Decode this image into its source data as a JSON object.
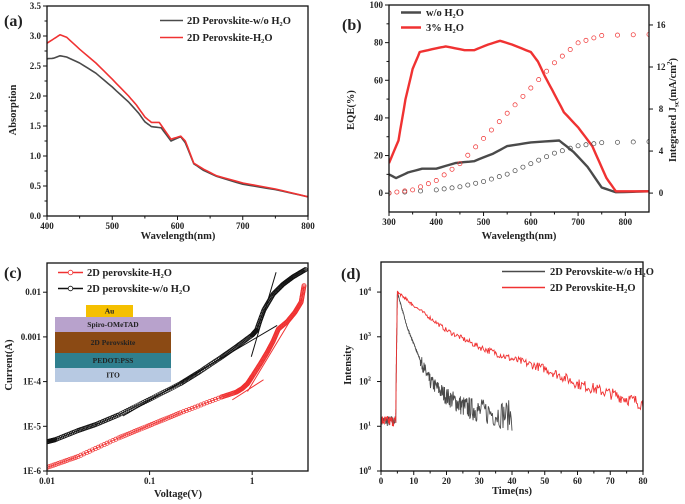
{
  "colors": {
    "black_series": "#4a4a4a",
    "red_series": "#f03232",
    "axis": "#111111"
  },
  "chart_data": [
    {
      "panel_label": "(a)",
      "type": "line",
      "xlabel": "Wavelength(nm)",
      "ylabel": "Absorption",
      "xlim": [
        400,
        800
      ],
      "ylim": [
        0,
        3.5
      ],
      "x_ticks": [
        {
          "v": 400,
          "label": "400"
        },
        {
          "v": 500,
          "label": "500"
        },
        {
          "v": 600,
          "label": "600"
        },
        {
          "v": 700,
          "label": "700"
        },
        {
          "v": 800,
          "label": "800"
        }
      ],
      "y_ticks": [
        {
          "v": 0,
          "label": "0.0"
        },
        {
          "v": 0.5,
          "label": "0.5"
        },
        {
          "v": 1,
          "label": "1.0"
        },
        {
          "v": 1.5,
          "label": "1.5"
        },
        {
          "v": 2,
          "label": "2.0"
        },
        {
          "v": 2.5,
          "label": "2.5"
        },
        {
          "v": 3,
          "label": "3.0"
        },
        {
          "v": 3.5,
          "label": "3.5"
        }
      ],
      "legend_position": "top-right",
      "series": [
        {
          "name": "2D Perovskite-w/o H₂O",
          "color": "#4a4a4a",
          "x": [
            400,
            410,
            420,
            430,
            450,
            475,
            500,
            525,
            540,
            550,
            560,
            575,
            590,
            600,
            605,
            612,
            625,
            640,
            660,
            700,
            750,
            800
          ],
          "y": [
            2.62,
            2.63,
            2.67,
            2.65,
            2.55,
            2.38,
            2.15,
            1.9,
            1.72,
            1.57,
            1.49,
            1.47,
            1.25,
            1.3,
            1.32,
            1.22,
            0.87,
            0.76,
            0.66,
            0.53,
            0.44,
            0.32
          ]
        },
        {
          "name": "2D Perovskite-H₂O",
          "color": "#f03232",
          "x": [
            400,
            410,
            420,
            430,
            450,
            475,
            500,
            525,
            537,
            550,
            560,
            572,
            590,
            605,
            612,
            625,
            640,
            660,
            700,
            750,
            800
          ],
          "y": [
            2.88,
            2.95,
            3.02,
            2.98,
            2.78,
            2.55,
            2.28,
            2.0,
            1.85,
            1.65,
            1.56,
            1.56,
            1.28,
            1.33,
            1.25,
            0.88,
            0.78,
            0.67,
            0.55,
            0.45,
            0.32
          ]
        }
      ]
    },
    {
      "panel_label": "(b)",
      "type": "line",
      "xlabel": "Wavelength(nm)",
      "ylabel": "EQE(%)",
      "y2label": {
        "main": "Integrated J",
        "sub": "sc",
        "unit": "(mA/cm",
        "sup": "2",
        "close": ")"
      },
      "xlim": [
        300,
        850
      ],
      "ylim": [
        -10,
        100
      ],
      "y2lim": [
        -1.8,
        17.9
      ],
      "x_ticks": [
        {
          "v": 300,
          "label": "300"
        },
        {
          "v": 400,
          "label": "400"
        },
        {
          "v": 500,
          "label": "500"
        },
        {
          "v": 600,
          "label": "600"
        },
        {
          "v": 700,
          "label": "700"
        },
        {
          "v": 800,
          "label": "800"
        }
      ],
      "y_ticks": [
        {
          "v": 0,
          "label": "0"
        },
        {
          "v": 20,
          "label": "20"
        },
        {
          "v": 40,
          "label": "40"
        },
        {
          "v": 60,
          "label": "60"
        },
        {
          "v": 80,
          "label": "80"
        },
        {
          "v": 100,
          "label": "100"
        }
      ],
      "y2_ticks": [
        {
          "v": 0,
          "label": "0"
        },
        {
          "v": 4,
          "label": "4"
        },
        {
          "v": 8,
          "label": "8"
        },
        {
          "v": 12,
          "label": "12"
        },
        {
          "v": 16,
          "label": "16"
        }
      ],
      "legend_position": "top-left",
      "series": [
        {
          "name": "w/o H₂O",
          "color": "#4a4a4a",
          "axis": "left",
          "x": [
            300,
            315,
            340,
            370,
            400,
            440,
            480,
            520,
            550,
            600,
            660,
            690,
            720,
            750,
            780,
            850
          ],
          "y": [
            10,
            8,
            11,
            13,
            13,
            16,
            17,
            21,
            25,
            27,
            28,
            22,
            14,
            3,
            0.5,
            1
          ]
        },
        {
          "name": "3% H₂O",
          "color": "#f03232",
          "axis": "left",
          "x": [
            300,
            320,
            335,
            350,
            365,
            400,
            420,
            460,
            480,
            510,
            535,
            560,
            600,
            615,
            630,
            645,
            670,
            700,
            730,
            760,
            780,
            850
          ],
          "y": [
            16,
            28,
            50,
            66,
            75,
            77,
            78,
            76,
            76,
            79,
            81,
            79,
            75,
            70,
            62,
            55,
            43,
            35,
            25,
            8,
            1,
            1
          ]
        },
        {
          "color": "#4a4a4a",
          "axis": "right",
          "marker": "open-circle",
          "x": [
            300,
            400,
            450,
            500,
            550,
            600,
            650,
            700,
            750,
            850
          ],
          "y": [
            0,
            0.3,
            0.6,
            1.1,
            1.8,
            2.8,
            3.8,
            4.5,
            4.8,
            4.9
          ]
        },
        {
          "color": "#f03232",
          "axis": "right",
          "marker": "open-circle",
          "x": [
            300,
            350,
            400,
            450,
            500,
            550,
            600,
            650,
            700,
            750,
            850
          ],
          "y": [
            0,
            0.3,
            1.2,
            2.8,
            5.2,
            7.6,
            10,
            12.4,
            14.3,
            15,
            15.1
          ]
        }
      ]
    },
    {
      "panel_label": "(c)",
      "type": "scatter",
      "xlabel": "Voltage(V)",
      "ylabel": "Current(A)",
      "xscale": "log",
      "yscale": "log",
      "xlim": [
        0.01,
        3.5
      ],
      "ylim": [
        1e-06,
        0.045
      ],
      "x_ticks": [
        {
          "v": 0.01,
          "label": "0.01"
        },
        {
          "v": 0.1,
          "label": "0.1"
        },
        {
          "v": 1,
          "label": "1"
        }
      ],
      "y_ticks": [
        {
          "v": 1e-06,
          "label": "1E-6"
        },
        {
          "v": 1e-05,
          "label": "1E-5"
        },
        {
          "v": 0.0001,
          "label": "1E-4"
        },
        {
          "v": 0.001,
          "label": "0.001"
        },
        {
          "v": 0.01,
          "label": "0.01"
        }
      ],
      "legend_position": "top-left",
      "series": [
        {
          "name": "2D perovskite-H₂O",
          "color": "#f03232",
          "marker": "open-circle",
          "x": [
            0.01,
            0.02,
            0.05,
            0.1,
            0.2,
            0.5,
            0.7,
            0.8,
            0.9,
            1.0,
            1.2,
            1.4,
            1.6,
            1.8,
            2.2,
            2.6,
            3.0,
            3.2
          ],
          "y": [
            1.2e-06,
            2.1e-06,
            5.5e-06,
            1.05e-05,
            2e-05,
            4.5e-05,
            5.8e-05,
            7e-05,
            9e-05,
            0.00013,
            0.00025,
            0.00045,
            0.0008,
            0.0015,
            0.0022,
            0.0035,
            0.006,
            0.014
          ]
        },
        {
          "name": "2D perovskite-w/o H₂O",
          "color": "#111111",
          "marker": "open-circle",
          "x": [
            0.01,
            0.012,
            0.02,
            0.03,
            0.05,
            0.1,
            0.2,
            0.3,
            0.5,
            0.7,
            1.0,
            1.1,
            1.3,
            1.6,
            2.0,
            2.5,
            3.3
          ],
          "y": [
            4.5e-06,
            5e-06,
            8e-06,
            1.1e-05,
            1.8e-05,
            4e-05,
            9e-05,
            0.00016,
            0.00035,
            0.0006,
            0.0011,
            0.0014,
            0.004,
            0.009,
            0.015,
            0.022,
            0.032
          ]
        }
      ],
      "fit_lines": [
        {
          "color": "#111111",
          "x": [
            0.055,
            1.75
          ],
          "y": [
            1.7e-05,
            0.0018
          ]
        },
        {
          "color": "#111111",
          "x": [
            0.98,
            1.71
          ],
          "y": [
            0.00036,
            0.028
          ]
        },
        {
          "color": "#f03232",
          "x": [
            0.64,
            1.29
          ],
          "y": [
            3.9e-05,
            0.00011
          ]
        },
        {
          "color": "#f03232",
          "x": [
            0.9,
            2.83
          ],
          "y": [
            6e-05,
            0.0047
          ]
        }
      ],
      "inset_device_stack": [
        {
          "label": "Au",
          "color": "#f5c000"
        },
        {
          "label": "Spiro-OMeTAD",
          "color": "#b8a2cc"
        },
        {
          "label": "2D Perovskite",
          "color": "#8b4a14"
        },
        {
          "label": "PEDOT:PSS",
          "color": "#2f7f8e"
        },
        {
          "label": "ITO",
          "color": "#b7c9e2"
        }
      ]
    },
    {
      "panel_label": "(d)",
      "type": "line",
      "xlabel": "Time(ns)",
      "ylabel": "Intensity",
      "yscale": "log",
      "xlim": [
        0,
        80
      ],
      "ylim": [
        1,
        47000
      ],
      "x_ticks": [
        {
          "v": 0,
          "label": "0"
        },
        {
          "v": 10,
          "label": "10"
        },
        {
          "v": 20,
          "label": "20"
        },
        {
          "v": 30,
          "label": "30"
        },
        {
          "v": 40,
          "label": "40"
        },
        {
          "v": 50,
          "label": "50"
        },
        {
          "v": 60,
          "label": "60"
        },
        {
          "v": 70,
          "label": "70"
        },
        {
          "v": 80,
          "label": "80"
        }
      ],
      "y_ticks": [
        {
          "v": 1,
          "base": "10",
          "exp": "0"
        },
        {
          "v": 10,
          "base": "10",
          "exp": "1"
        },
        {
          "v": 100,
          "base": "10",
          "exp": "2"
        },
        {
          "v": 1000,
          "base": "10",
          "exp": "3"
        },
        {
          "v": 10000,
          "base": "10",
          "exp": "4"
        }
      ],
      "legend_position": "top-right",
      "series": [
        {
          "name": "2D Perovskite-w/o H₂O",
          "color": "#4a4a4a",
          "x": [
            0,
            4.5,
            4.7,
            5,
            8,
            10,
            12,
            15,
            20,
            25,
            30,
            40
          ],
          "y": [
            13,
            13,
            300,
            10000,
            1600,
            700,
            300,
            100,
            47,
            28,
            22,
            17
          ]
        },
        {
          "name": "2D Perovskite-H₂O",
          "color": "#f03232",
          "x": [
            0,
            4.5,
            4.7,
            5,
            10,
            20,
            30,
            40,
            50,
            60,
            70,
            80
          ],
          "y": [
            13,
            13,
            300,
            10000,
            5000,
            1400,
            590,
            320,
            195,
            89,
            54,
            32
          ]
        }
      ]
    }
  ]
}
